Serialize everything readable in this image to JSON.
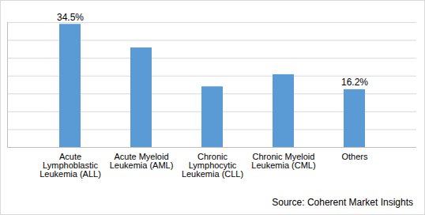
{
  "chart_data": {
    "type": "bar",
    "categories": [
      "Acute Lymphoblastic Leukemia (ALL)",
      "Acute Myeloid Leukemia (AML)",
      "Chronic Lymphocytic Leukemia (CLL)",
      "Chronic Myeloid Leukemia (CML)",
      "Others"
    ],
    "values": [
      34.5,
      27.9,
      17.0,
      20.4,
      16.2
    ],
    "value_labels": [
      "34.5%",
      null,
      null,
      null,
      "16.2%"
    ],
    "data_labels": true,
    "color": "#5b9bd5",
    "ylim": [
      0,
      35
    ],
    "yticks": [
      0,
      5,
      10,
      15,
      20,
      25,
      30,
      35
    ],
    "grid": true,
    "tick_labels": "x",
    "source": "Source: Coherent Market Insights"
  }
}
